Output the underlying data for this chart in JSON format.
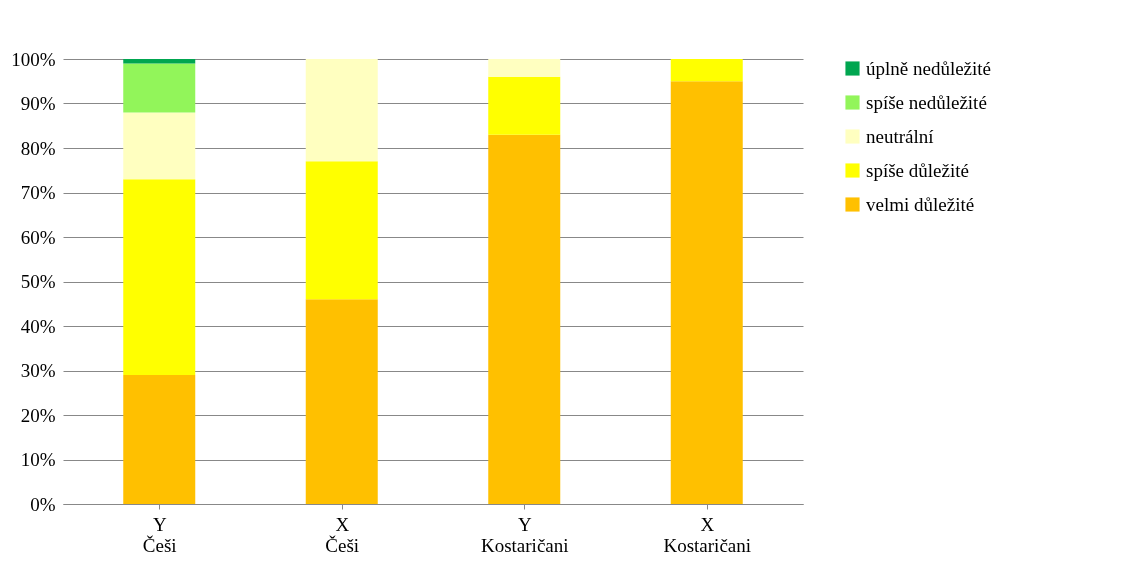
{
  "chart_data": {
    "type": "bar",
    "stacked": true,
    "categories": [
      "Y\nČeši",
      "X\nČeši",
      "Y\nKostaričani",
      "X\nKostaričani"
    ],
    "series": [
      {
        "name": "velmi důležité",
        "color": "#ffc000",
        "values": [
          29,
          46,
          83,
          95
        ]
      },
      {
        "name": "spíše důležité",
        "color": "#ffff00",
        "values": [
          44,
          31,
          13,
          5
        ]
      },
      {
        "name": "neutrální",
        "color": "#ffffc0",
        "values": [
          15,
          23,
          4,
          0
        ]
      },
      {
        "name": "spíše nedůležité",
        "color": "#92f55a",
        "values": [
          11,
          0,
          0,
          0
        ]
      },
      {
        "name": "úplně nedůležité",
        "color": "#00a650",
        "values": [
          1,
          0,
          0,
          0
        ]
      }
    ],
    "ylim": [
      0,
      100
    ],
    "yticks": [
      {
        "value": 0,
        "label": "0%"
      },
      {
        "value": 10,
        "label": "10%"
      },
      {
        "value": 20,
        "label": "20%"
      },
      {
        "value": 30,
        "label": "30%"
      },
      {
        "value": 40,
        "label": "40%"
      },
      {
        "value": 50,
        "label": "50%"
      },
      {
        "value": 60,
        "label": "60%"
      },
      {
        "value": 70,
        "label": "70%"
      },
      {
        "value": 80,
        "label": "80%"
      },
      {
        "value": 90,
        "label": "90%"
      },
      {
        "value": 100,
        "label": "100%"
      }
    ],
    "grid": "y",
    "legend": "right"
  }
}
